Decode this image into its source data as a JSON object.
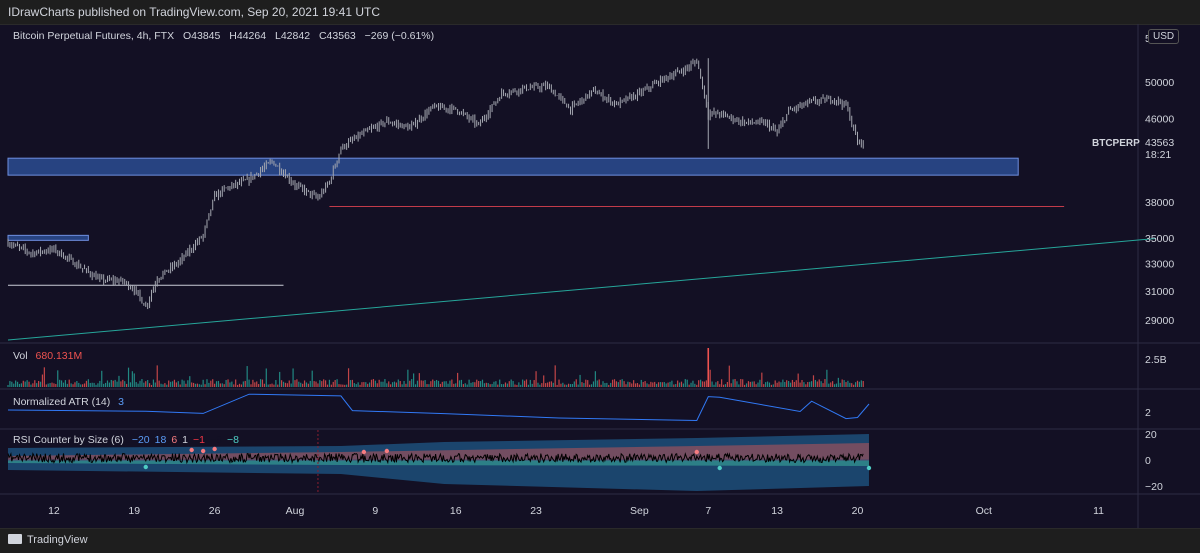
{
  "header": {
    "publish_text": "IDrawCharts published on TradingView.com, Sep 20, 2021 19:41 UTC"
  },
  "legend": {
    "symbol_text": "Bitcoin Perpetual Futures, 4h, FTX",
    "open": "O43845",
    "high": "H44264",
    "low": "L42842",
    "close": "C43563",
    "change": "−269 (−0.61%)"
  },
  "price_axis": {
    "currency": "USD",
    "partial_top_label": "5",
    "ticks": [
      "50000",
      "46000",
      "38000",
      "35000",
      "33000",
      "31000",
      "29000"
    ],
    "symbol_tag": "BTCPERP",
    "last_price": "43563",
    "countdown": "18:21"
  },
  "time_axis": {
    "labels": [
      "12",
      "19",
      "26",
      "Aug",
      "9",
      "16",
      "23",
      "Sep",
      "7",
      "13",
      "20",
      "Oct",
      "11"
    ]
  },
  "panes": {
    "volume": {
      "label": "Vol",
      "value": "680.131M",
      "axis_tick": "2.5B"
    },
    "atr": {
      "label": "Normalized ATR (14)",
      "value": "3",
      "axis_tick": "2"
    },
    "rsi": {
      "label": "RSI Counter by Size (6)",
      "values": [
        "−20",
        "18",
        "6",
        "1",
        "−1",
        "−8",
        "−8"
      ],
      "value_colors": [
        "#5b9cf6",
        "#5b9cf6",
        "#f77c80",
        "#d1d4dc",
        "#f23645",
        "#131024",
        "#4ecdc4"
      ],
      "axis_ticks": [
        "20",
        "0",
        "−20"
      ]
    }
  },
  "colors": {
    "background": "#131024",
    "candle": "#a4a7b0",
    "zone_fill": "#2f54a0",
    "support_line": "#c23b4a",
    "trend_line": "#26a69a",
    "volume_up": "#26a69a",
    "volume_down": "#ef5350",
    "atr_line": "#3179f5",
    "rsi_line": "#000000"
  },
  "footer": {
    "brand": "TradingView"
  },
  "chart_data": {
    "type": "ohlc",
    "title": "Bitcoin Perpetual Futures, 4h, FTX",
    "interval": "4h",
    "x_range": [
      "2021-07-08",
      "2021-10-14"
    ],
    "y_range": [
      27600,
      55500
    ],
    "close_series": [
      {
        "date": "2021-07-08",
        "close": 34600
      },
      {
        "date": "2021-07-10",
        "close": 33800
      },
      {
        "date": "2021-07-12",
        "close": 34100
      },
      {
        "date": "2021-07-14",
        "close": 32900
      },
      {
        "date": "2021-07-16",
        "close": 31800
      },
      {
        "date": "2021-07-18",
        "close": 31700
      },
      {
        "date": "2021-07-19",
        "close": 31100
      },
      {
        "date": "2021-07-20",
        "close": 29900
      },
      {
        "date": "2021-07-21",
        "close": 31900
      },
      {
        "date": "2021-07-23",
        "close": 33200
      },
      {
        "date": "2021-07-25",
        "close": 35200
      },
      {
        "date": "2021-07-26",
        "close": 38500
      },
      {
        "date": "2021-07-27",
        "close": 39200
      },
      {
        "date": "2021-07-29",
        "close": 40000
      },
      {
        "date": "2021-07-31",
        "close": 41700
      },
      {
        "date": "2021-08-02",
        "close": 39500
      },
      {
        "date": "2021-08-04",
        "close": 38300
      },
      {
        "date": "2021-08-05",
        "close": 39800
      },
      {
        "date": "2021-08-06",
        "close": 43000
      },
      {
        "date": "2021-08-08",
        "close": 44500
      },
      {
        "date": "2021-08-10",
        "close": 45700
      },
      {
        "date": "2021-08-12",
        "close": 45000
      },
      {
        "date": "2021-08-14",
        "close": 47200
      },
      {
        "date": "2021-08-16",
        "close": 47000
      },
      {
        "date": "2021-08-18",
        "close": 45300
      },
      {
        "date": "2021-08-20",
        "close": 48700
      },
      {
        "date": "2021-08-22",
        "close": 49300
      },
      {
        "date": "2021-08-24",
        "close": 49500
      },
      {
        "date": "2021-08-26",
        "close": 47000
      },
      {
        "date": "2021-08-28",
        "close": 49000
      },
      {
        "date": "2021-08-30",
        "close": 47500
      },
      {
        "date": "2021-09-01",
        "close": 48700
      },
      {
        "date": "2021-09-03",
        "close": 50300
      },
      {
        "date": "2021-09-05",
        "close": 51500
      },
      {
        "date": "2021-09-06",
        "close": 52500
      },
      {
        "date": "2021-09-07",
        "close": 46500
      },
      {
        "date": "2021-09-08",
        "close": 46500
      },
      {
        "date": "2021-09-10",
        "close": 45600
      },
      {
        "date": "2021-09-12",
        "close": 45500
      },
      {
        "date": "2021-09-13",
        "close": 44500
      },
      {
        "date": "2021-09-14",
        "close": 46800
      },
      {
        "date": "2021-09-16",
        "close": 47800
      },
      {
        "date": "2021-09-18",
        "close": 48100
      },
      {
        "date": "2021-09-19",
        "close": 47400
      },
      {
        "date": "2021-09-20",
        "close": 43563
      }
    ],
    "annotations": [
      {
        "kind": "zone",
        "from": "2021-07-08",
        "to": "2021-10-04",
        "low": 40400,
        "high": 42000
      },
      {
        "kind": "zone",
        "from": "2021-07-08",
        "to": "2021-07-15",
        "low": 34800,
        "high": 35200
      },
      {
        "kind": "horizontal_line",
        "from": "2021-08-05",
        "to": "2021-10-08",
        "price": 37600
      },
      {
        "kind": "horizontal_line",
        "from": "2021-07-08",
        "to": "2021-08-01",
        "price": 31400
      },
      {
        "kind": "trend_line",
        "from": [
          "2021-07-08",
          27700
        ],
        "to": [
          "2021-10-16",
          34950
        ]
      }
    ],
    "volume": {
      "last": "680.131M",
      "axis_max_label": "2.5B"
    },
    "atr": {
      "name": "Normalized ATR (14)",
      "last": 3
    },
    "rsi_counter": {
      "name": "RSI Counter by Size (6)",
      "y_range": [
        -20,
        20
      ]
    }
  }
}
